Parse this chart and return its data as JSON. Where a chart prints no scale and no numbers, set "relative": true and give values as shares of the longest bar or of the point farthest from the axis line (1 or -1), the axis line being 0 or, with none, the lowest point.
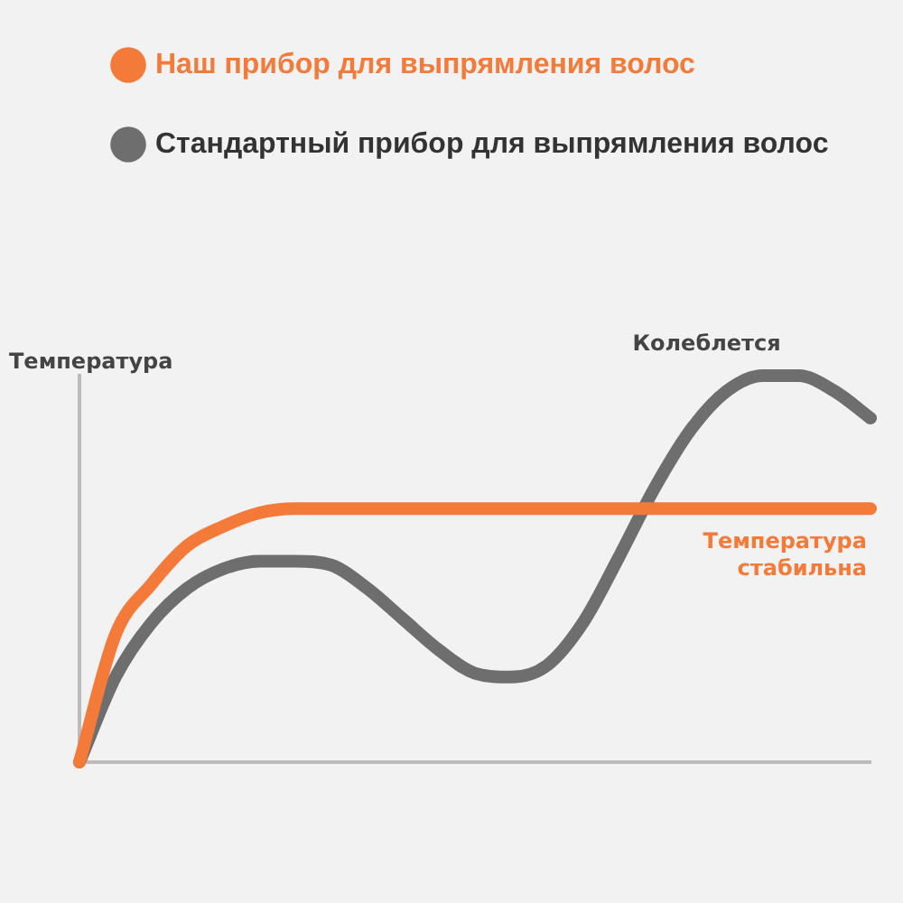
{
  "chart_data": {
    "type": "line",
    "relative": true,
    "ylabel": "Температура",
    "legend": "top left",
    "marker": "none",
    "line_style": "solid",
    "grid": false,
    "categories": [
      null,
      null,
      null,
      null,
      null,
      null,
      null,
      null,
      null,
      null,
      null,
      null,
      null,
      null,
      null,
      null,
      null,
      null,
      null,
      null,
      null,
      null,
      null
    ],
    "series": [
      {
        "name": "Наш прибор для выпрямления волос",
        "color": "#f47a3a",
        "values": [
          0,
          0.33,
          0.46,
          0.56,
          0.61,
          0.645,
          0.656,
          0.656,
          0.656,
          0.656,
          0.656,
          0.656,
          0.656,
          0.656,
          0.656,
          0.656,
          0.656,
          0.656,
          0.656,
          0.656,
          0.656,
          0.656,
          0.656
        ]
      },
      {
        "name": "Стандартный прибор для выпрямления волос",
        "color": "#6e6e6e",
        "values": [
          0,
          0.22,
          0.36,
          0.45,
          0.5,
          0.52,
          0.52,
          0.51,
          0.45,
          0.37,
          0.29,
          0.23,
          0.22,
          0.25,
          0.36,
          0.53,
          0.71,
          0.86,
          0.96,
          1,
          1,
          0.96,
          0.89
        ]
      }
    ],
    "annotations": [
      "Колеблется",
      "Температура стабильна"
    ]
  }
}
